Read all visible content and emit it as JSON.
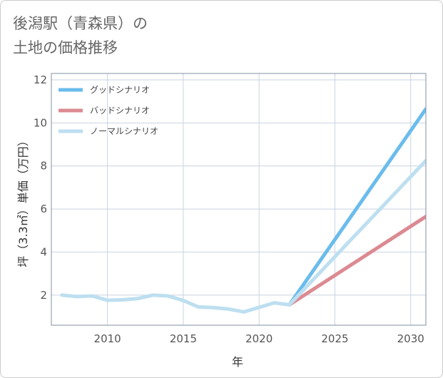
{
  "header": {
    "title_line1": "後潟駅（青森県）の",
    "title_line2": "土地の価格推移"
  },
  "chart_data": {
    "type": "line",
    "title": "後潟駅（青森県）の土地の価格推移",
    "xlabel": "年",
    "ylabel": "坪（3.3㎡）単価（万円）",
    "xlim": [
      2006.3,
      2031
    ],
    "ylim": [
      0.6,
      12.3
    ],
    "xticks": [
      2010,
      2015,
      2020,
      2025,
      2030
    ],
    "yticks": [
      2,
      4,
      6,
      8,
      10,
      12
    ],
    "grid": true,
    "legend_position": "top-left",
    "series": [
      {
        "name": "グッドシナリオ",
        "color": "#6bbcec",
        "x": [
          2022,
          2031
        ],
        "y": [
          1.55,
          10.65
        ]
      },
      {
        "name": "バッドシナリオ",
        "color": "#dc8a92",
        "x": [
          2022,
          2031
        ],
        "y": [
          1.55,
          5.65
        ]
      },
      {
        "name": "ノーマルシナリオ",
        "color": "#bddff0",
        "x": [
          2007,
          2008,
          2009,
          2010,
          2011,
          2012,
          2013,
          2014,
          2015,
          2016,
          2017,
          2018,
          2019,
          2020,
          2021,
          2022,
          2031
        ],
        "y": [
          2.0,
          1.93,
          1.96,
          1.76,
          1.78,
          1.84,
          2.0,
          1.96,
          1.75,
          1.45,
          1.42,
          1.35,
          1.22,
          1.43,
          1.64,
          1.55,
          8.25
        ]
      }
    ]
  }
}
